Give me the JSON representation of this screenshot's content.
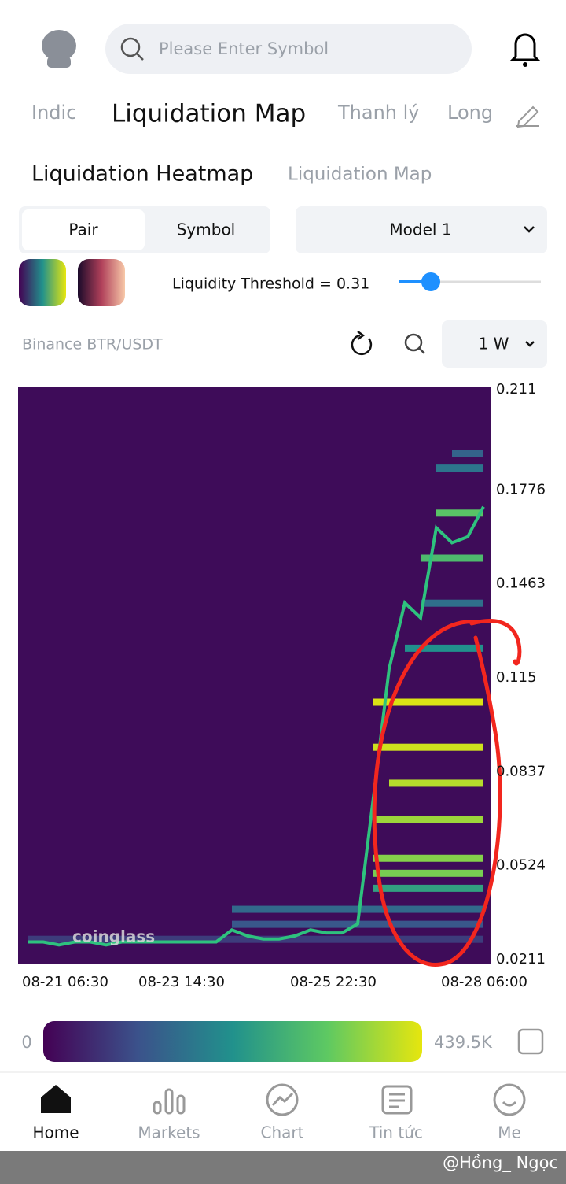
{
  "header": {
    "search_placeholder": "Please Enter Symbol"
  },
  "tabs": [
    "Indic",
    "Liquidation Map",
    "Thanh lý",
    "Long"
  ],
  "subtabs": [
    "Liquidation Heatmap",
    "Liquidation Map"
  ],
  "segment": [
    "Pair",
    "Symbol"
  ],
  "model": "Model 1",
  "threshold": "Liquidity Threshold = 0.31",
  "pair_label": "Binance BTR/USDT",
  "interval": "1 W",
  "chart_data": {
    "type": "heatmap",
    "watermark": "coinglass",
    "ylim": [
      0.0211,
      0.211
    ],
    "yticks": [
      0.211,
      0.1776,
      0.1463,
      0.115,
      0.0837,
      0.0524,
      0.0211
    ],
    "x_labels": [
      "08-21 06:30",
      "08-23 14:30",
      "08-25 22:30",
      "08-28 06:00"
    ],
    "price": [
      0.027,
      0.027,
      0.026,
      0.027,
      0.027,
      0.026,
      0.027,
      0.027,
      0.027,
      0.027,
      0.027,
      0.027,
      0.027,
      0.031,
      0.029,
      0.028,
      0.028,
      0.029,
      0.031,
      0.03,
      0.03,
      0.033,
      0.075,
      0.118,
      0.14,
      0.135,
      0.165,
      0.16,
      0.162,
      0.172
    ],
    "price_color": "#2ec27e",
    "levels": {
      "prices": [
        0.028,
        0.033,
        0.038,
        0.045,
        0.05,
        0.055,
        0.068,
        0.08,
        0.092,
        0.107,
        0.125,
        0.14,
        0.155,
        0.17,
        0.185,
        0.19
      ],
      "values": [
        80000,
        120000,
        150000,
        250000,
        350000,
        360000,
        380000,
        400000,
        420000,
        430000,
        220000,
        160000,
        300000,
        320000,
        170000,
        140000
      ],
      "start": [
        0,
        13,
        13,
        22,
        22,
        22,
        22,
        23,
        22,
        22,
        24,
        25,
        25,
        26,
        26,
        27
      ]
    },
    "colorbar": {
      "min": 0,
      "max": {
        "value": 439500,
        "label": "439.5K"
      }
    }
  },
  "nav": [
    "Home",
    "Markets",
    "Chart",
    "Tin tức",
    "Me"
  ],
  "credit": "@Hồng_ Ngọc"
}
